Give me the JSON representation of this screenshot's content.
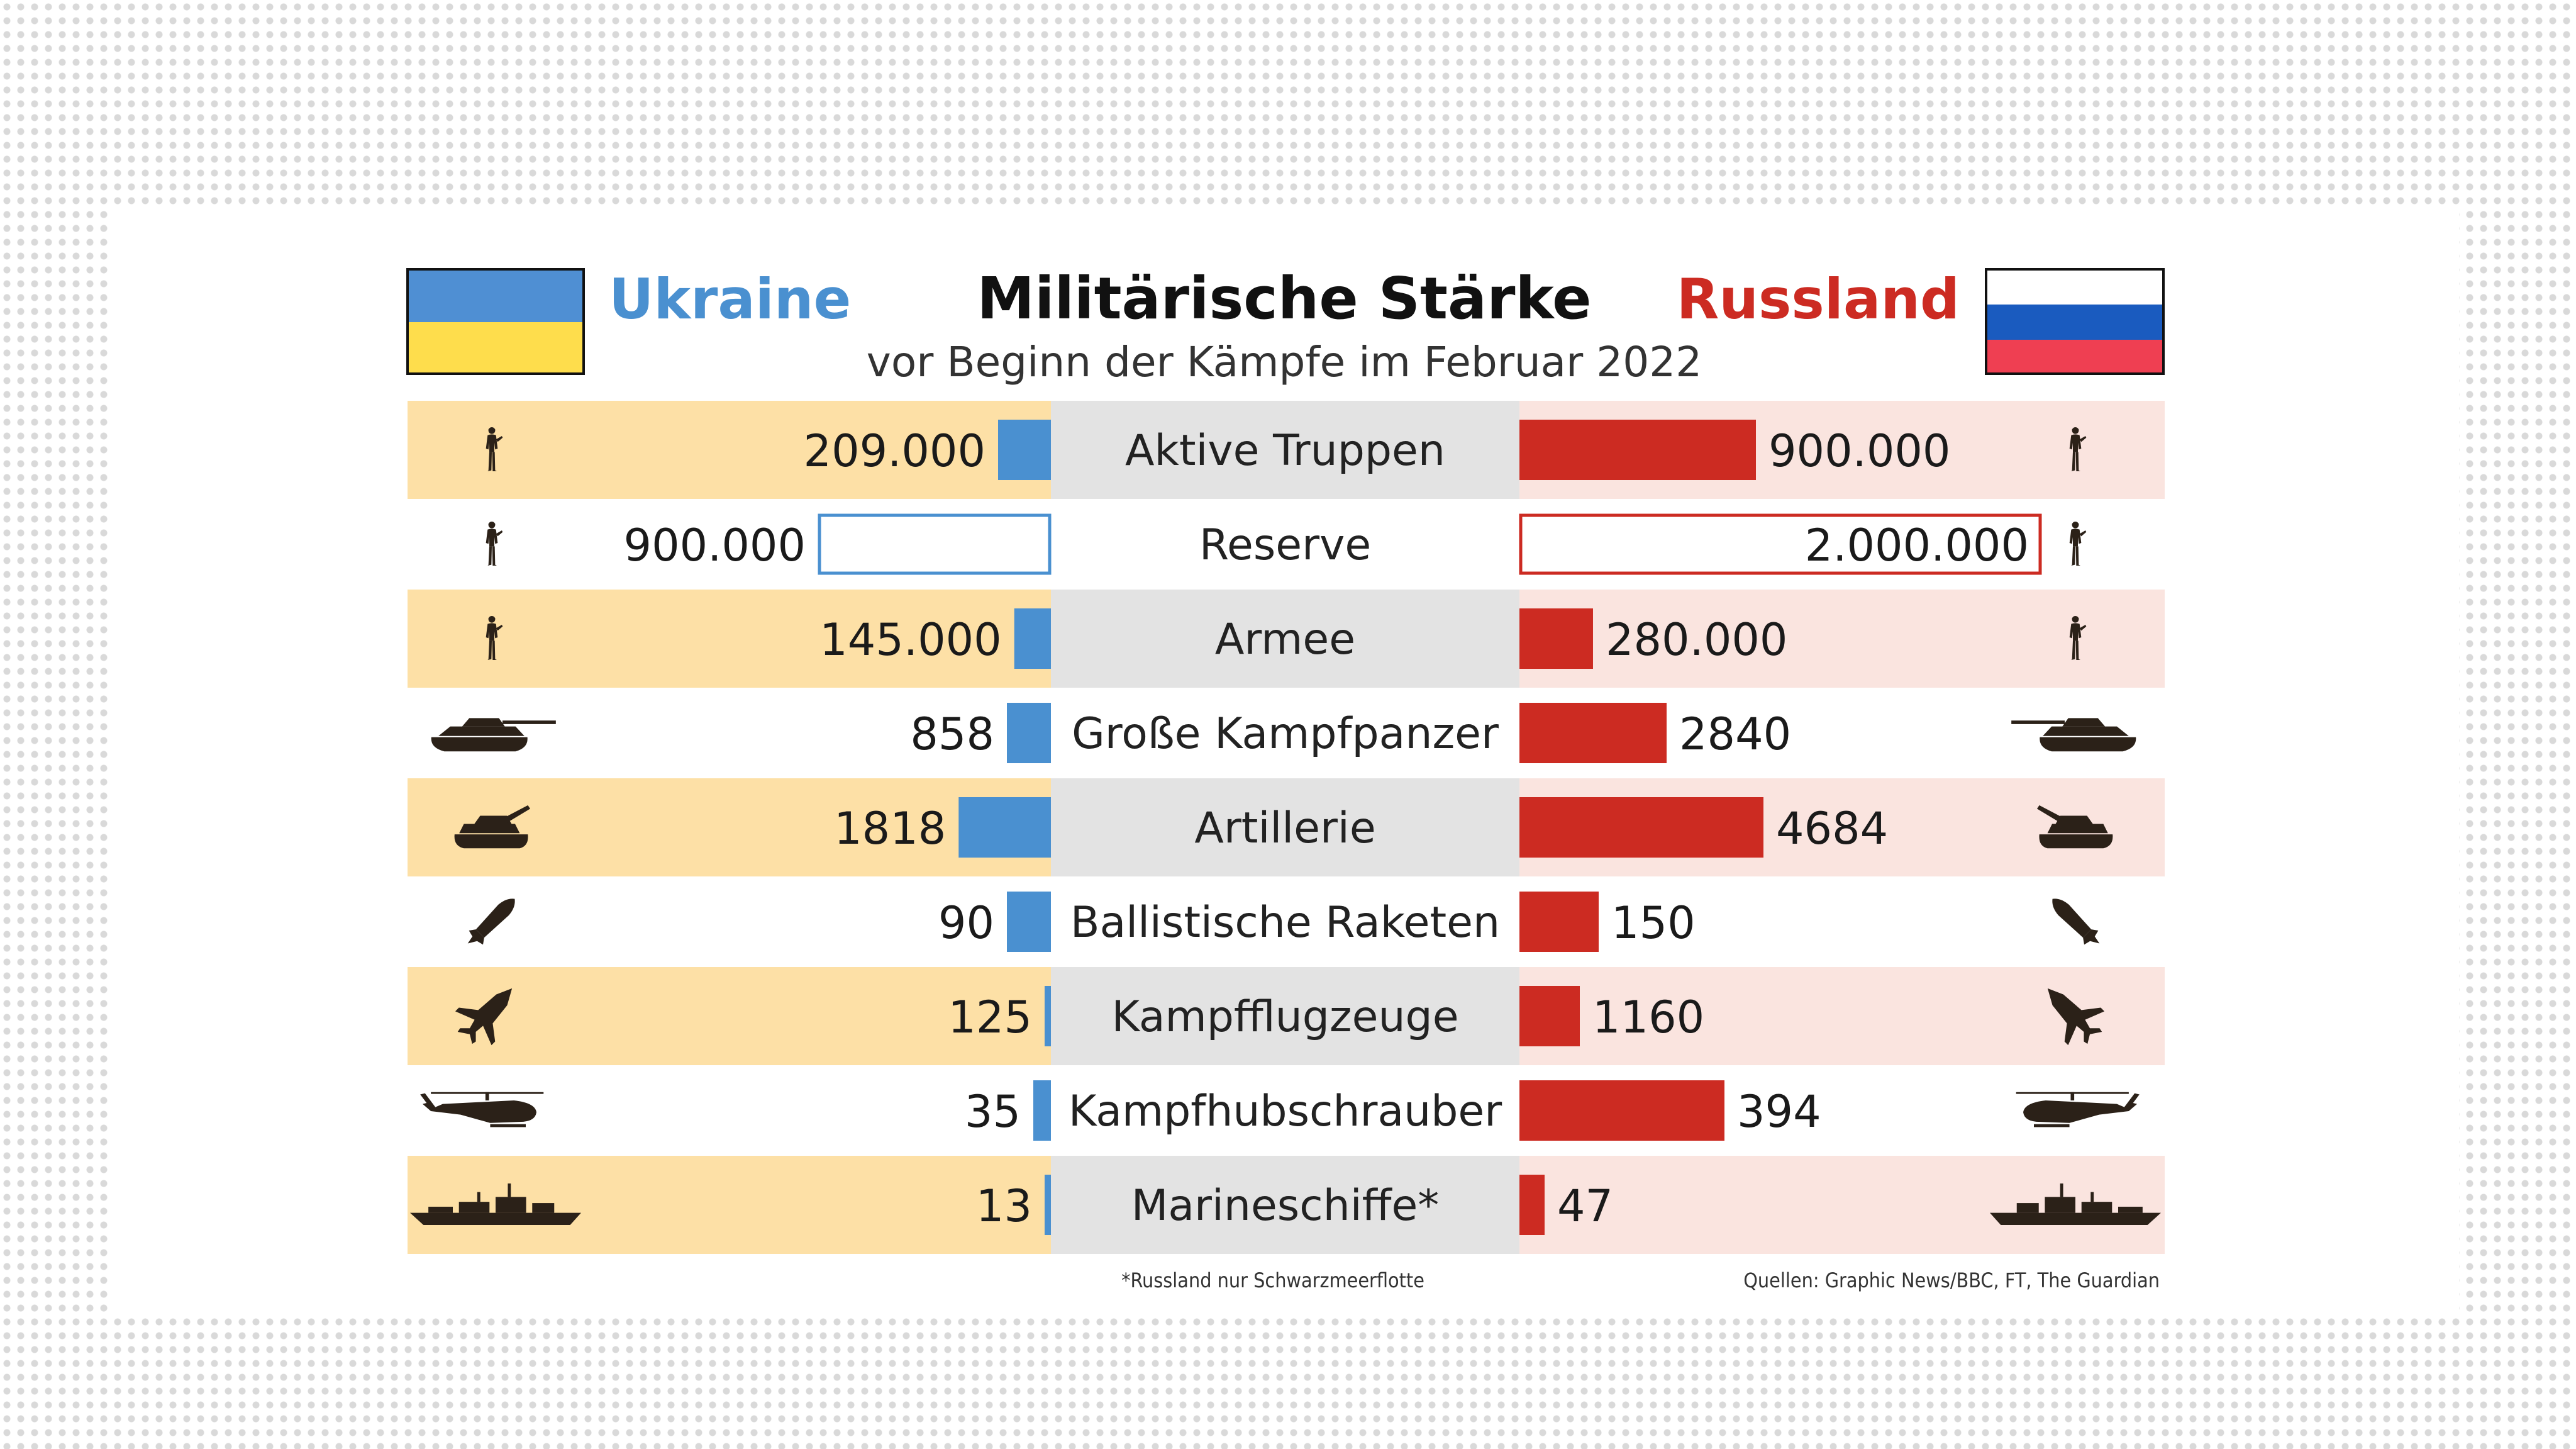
{
  "header": {
    "title": "Militärische Stärke",
    "subtitle": "vor Beginn der Kämpfe im Februar 2022",
    "left_country": "Ukraine",
    "right_country": "Russland"
  },
  "colors": {
    "ukraine_bar": "#4a90d0",
    "russia_bar": "#cc2b22",
    "ukraine_row_band": "#fde0a6",
    "russia_row_band": "#fae4df",
    "center_band": "#e3e3e3",
    "flag_ua_top": "#4f8fd3",
    "flag_ua_bottom": "#fedd4c",
    "flag_ru_white": "#ffffff",
    "flag_ru_blue": "#1a5bbf",
    "flag_ru_red": "#ef3f52"
  },
  "chart_data": {
    "type": "bar",
    "layout": "butterfly",
    "categories": [
      "Aktive Truppen",
      "Reserve",
      "Armee",
      "Große Kampfpanzer",
      "Artillerie",
      "Ballistische Raketen",
      "Kampfflugzeuge",
      "Kampfhubschrauber",
      "Marineschiffe*"
    ],
    "series": [
      {
        "name": "Ukraine",
        "values": [
          209000,
          900000,
          145000,
          858,
          1818,
          90,
          125,
          35,
          13
        ],
        "labels": [
          "209.000",
          "900.000",
          "145.000",
          "858",
          "1818",
          "90",
          "125",
          "35",
          "13"
        ]
      },
      {
        "name": "Russland",
        "values": [
          900000,
          2000000,
          280000,
          2840,
          4684,
          150,
          1160,
          394,
          47
        ],
        "labels": [
          "900.000",
          "2.000.000",
          "280.000",
          "2840",
          "4684",
          "150",
          "1160",
          "394",
          "47"
        ]
      }
    ],
    "outline_rows": [
      "Reserve"
    ],
    "icons": [
      "soldier-icon",
      "soldier-icon",
      "soldier-icon",
      "tank-icon",
      "artillery-icon",
      "missile-icon",
      "fighter-jet-icon",
      "helicopter-icon",
      "warship-icon"
    ]
  },
  "footer": {
    "note": "*Russland nur Schwarzmeerflotte",
    "sources": "Quellen: Graphic News/BBC, FT, The Guardian"
  }
}
